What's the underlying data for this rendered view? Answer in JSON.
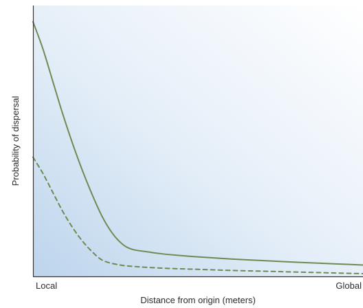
{
  "chart_data": {
    "type": "line",
    "xlabel": "Distance from origin (meters)",
    "ylabel": "Probability of dispersal",
    "x_tick_labels": [
      "Local",
      "Global"
    ],
    "xlim": [
      0,
      1
    ],
    "ylim": [
      0,
      1
    ],
    "grid": false,
    "background": "gradient (blue at bottom-left fading to white at top-right)",
    "series": [
      {
        "style": "solid",
        "color": "#6e8a52",
        "points": [
          [
            0.0,
            0.94
          ],
          [
            0.03,
            0.84
          ],
          [
            0.06,
            0.72
          ],
          [
            0.09,
            0.6
          ],
          [
            0.12,
            0.49
          ],
          [
            0.15,
            0.39
          ],
          [
            0.18,
            0.3
          ],
          [
            0.21,
            0.22
          ],
          [
            0.24,
            0.16
          ],
          [
            0.27,
            0.12
          ],
          [
            0.3,
            0.1
          ],
          [
            0.35,
            0.09
          ],
          [
            0.4,
            0.082
          ],
          [
            0.5,
            0.072
          ],
          [
            0.6,
            0.064
          ],
          [
            0.7,
            0.058
          ],
          [
            0.8,
            0.052
          ],
          [
            0.9,
            0.047
          ],
          [
            1.0,
            0.042
          ]
        ]
      },
      {
        "style": "dashed",
        "color": "#6e8a52",
        "points": [
          [
            0.0,
            0.44
          ],
          [
            0.03,
            0.38
          ],
          [
            0.06,
            0.31
          ],
          [
            0.09,
            0.24
          ],
          [
            0.12,
            0.18
          ],
          [
            0.15,
            0.13
          ],
          [
            0.18,
            0.09
          ],
          [
            0.21,
            0.06
          ],
          [
            0.25,
            0.045
          ],
          [
            0.3,
            0.037
          ],
          [
            0.4,
            0.03
          ],
          [
            0.5,
            0.026
          ],
          [
            0.6,
            0.022
          ],
          [
            0.7,
            0.019
          ],
          [
            0.8,
            0.016
          ],
          [
            0.9,
            0.013
          ],
          [
            1.0,
            0.01
          ]
        ]
      }
    ]
  }
}
